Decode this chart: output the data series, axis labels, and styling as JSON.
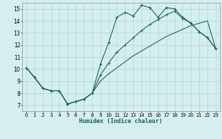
{
  "xlabel": "Humidex (Indice chaleur)",
  "bg_color": "#d5efef",
  "grid_color": "#b8d8d8",
  "line_color": "#1a6060",
  "xlim": [
    -0.5,
    23.5
  ],
  "ylim": [
    6.5,
    15.5
  ],
  "xticks": [
    0,
    1,
    2,
    3,
    4,
    5,
    6,
    7,
    8,
    9,
    10,
    11,
    12,
    13,
    14,
    15,
    16,
    17,
    18,
    19,
    20,
    21,
    22,
    23
  ],
  "yticks": [
    7,
    8,
    9,
    10,
    11,
    12,
    13,
    14,
    15
  ],
  "line1_x": [
    0,
    1,
    2,
    3,
    4,
    5,
    6,
    7,
    8,
    9,
    10,
    11,
    12,
    13,
    14,
    15,
    16,
    17,
    18,
    19,
    20,
    21,
    22,
    23
  ],
  "line1_y": [
    10.1,
    9.3,
    8.4,
    8.2,
    8.2,
    7.1,
    7.3,
    7.5,
    8.0,
    10.4,
    12.2,
    14.3,
    14.7,
    14.4,
    15.3,
    15.1,
    14.3,
    15.1,
    15.0,
    14.3,
    13.8,
    13.1,
    12.6,
    11.7
  ],
  "line2_x": [
    0,
    1,
    2,
    3,
    4,
    5,
    6,
    7,
    8,
    9,
    10,
    11,
    12,
    13,
    14,
    15,
    16,
    17,
    18,
    19,
    20,
    21,
    22,
    23
  ],
  "line2_y": [
    10.1,
    9.3,
    8.4,
    8.2,
    8.2,
    7.1,
    7.3,
    7.5,
    8.0,
    9.5,
    10.5,
    11.4,
    12.0,
    12.6,
    13.2,
    13.7,
    14.1,
    14.5,
    14.8,
    14.2,
    13.8,
    13.1,
    12.6,
    11.7
  ],
  "line3_x": [
    0,
    1,
    2,
    3,
    4,
    5,
    6,
    7,
    8,
    9,
    10,
    11,
    12,
    13,
    14,
    15,
    16,
    17,
    18,
    19,
    20,
    21,
    22,
    23
  ],
  "line3_y": [
    10.1,
    9.3,
    8.4,
    8.2,
    8.2,
    7.1,
    7.3,
    7.5,
    8.0,
    9.0,
    9.6,
    10.1,
    10.6,
    11.1,
    11.5,
    11.9,
    12.3,
    12.7,
    13.0,
    13.3,
    13.6,
    13.8,
    14.0,
    11.7
  ]
}
